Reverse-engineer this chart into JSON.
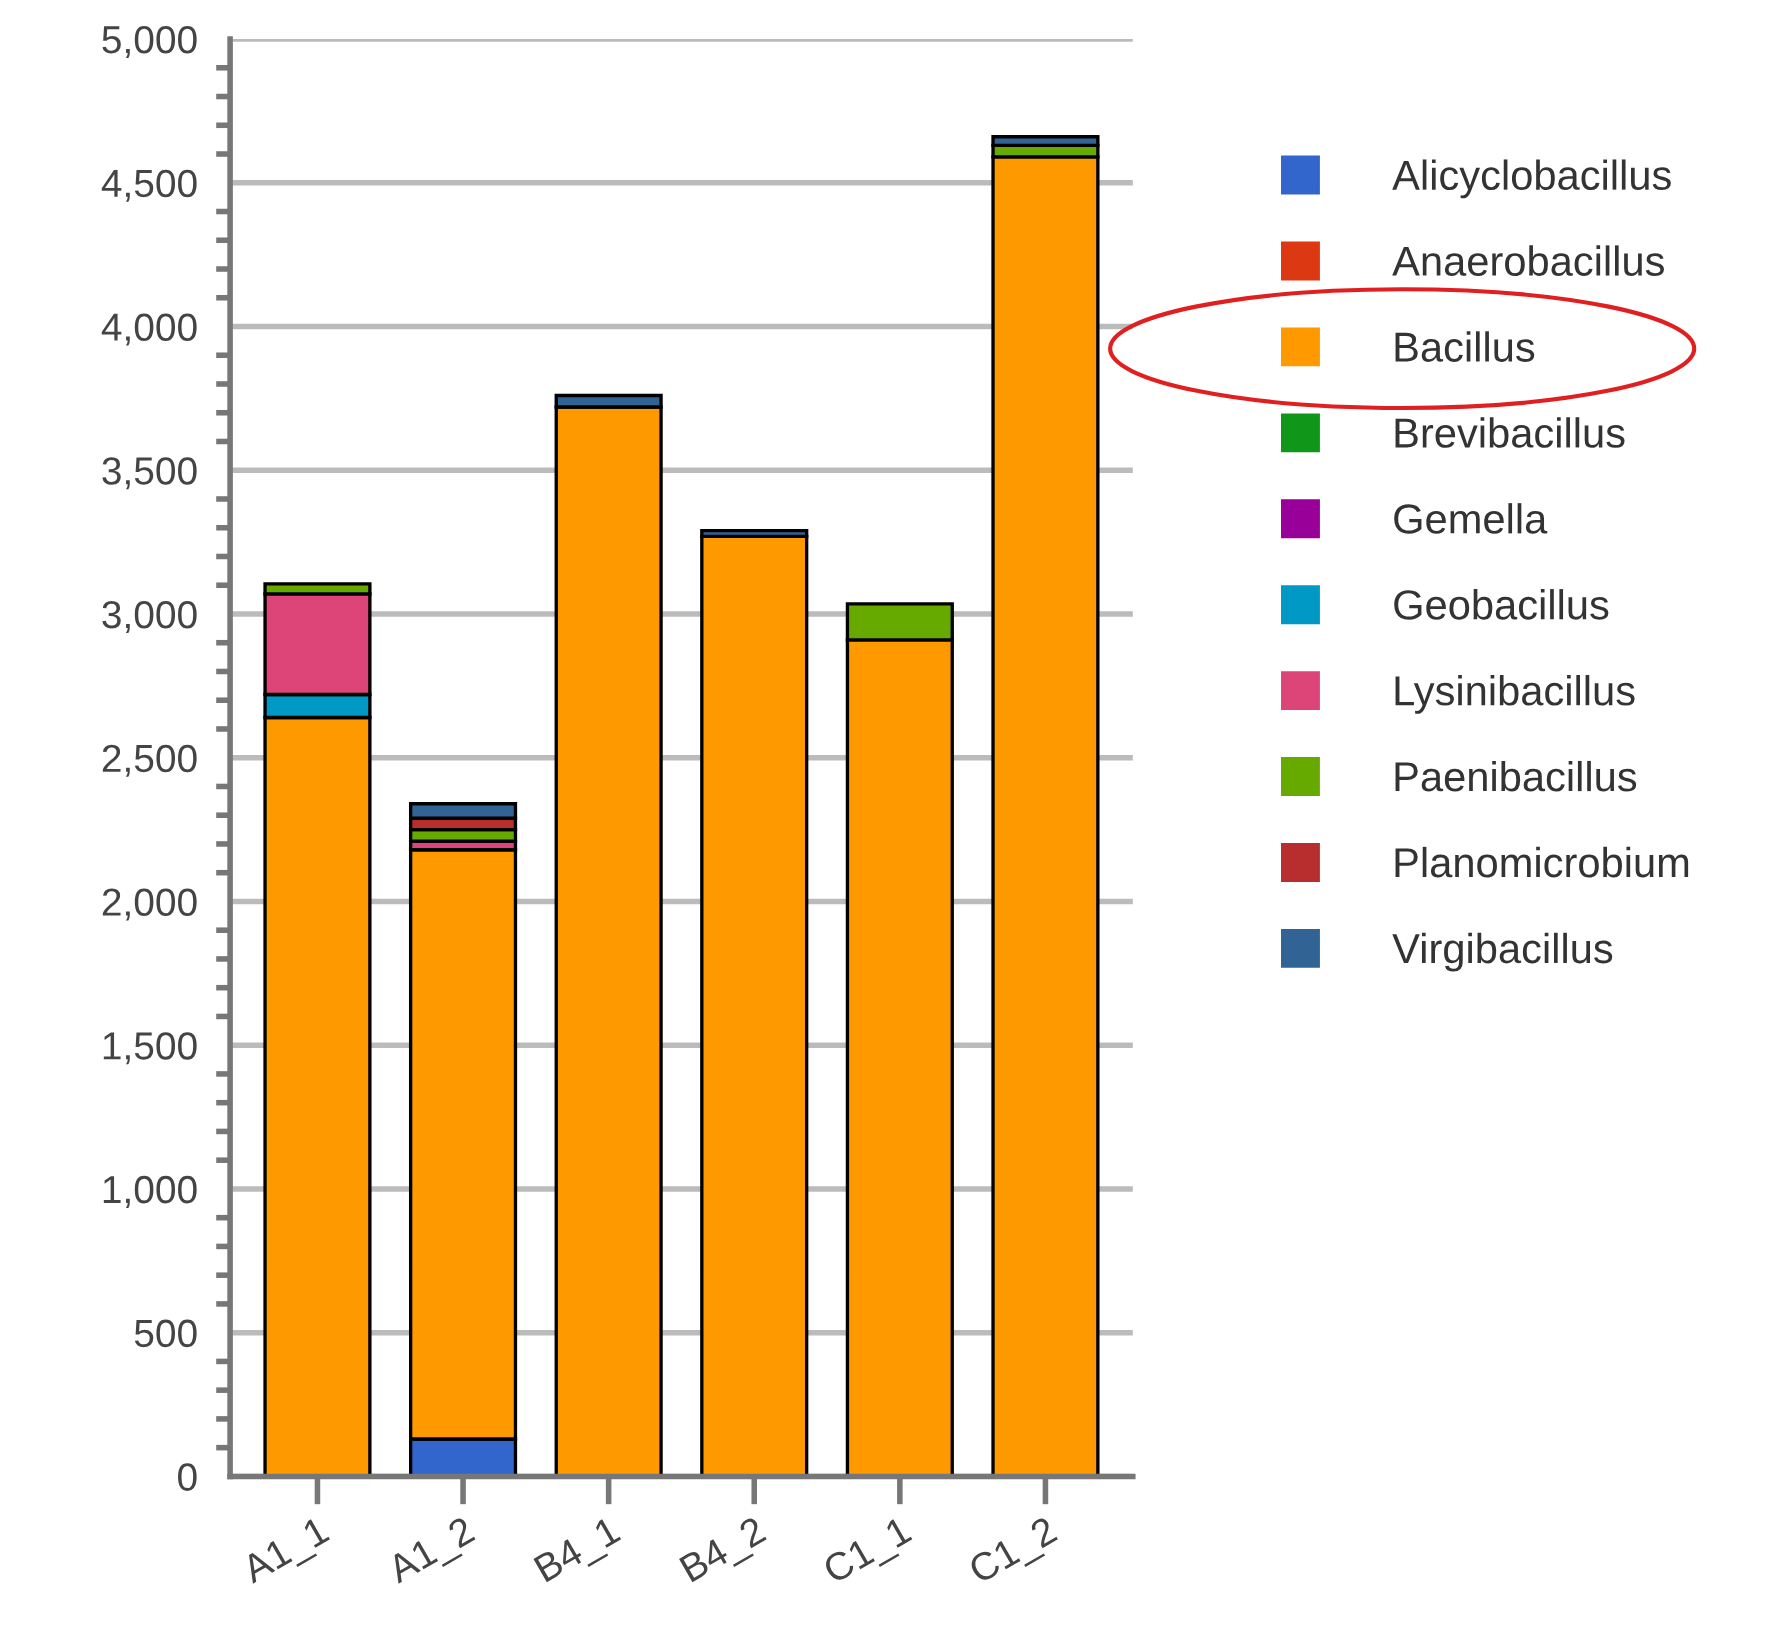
{
  "chart_data": {
    "type": "bar",
    "stacked": true,
    "categories": [
      "A1_1",
      "A1_2",
      "B4_1",
      "B4_2",
      "C1_1",
      "C1_2"
    ],
    "series": [
      {
        "name": "Alicyclobacillus",
        "color": "#3366cc",
        "values": [
          null,
          130,
          null,
          null,
          null,
          null
        ]
      },
      {
        "name": "Anaerobacillus",
        "color": "#dc3912",
        "values": [
          null,
          null,
          null,
          null,
          null,
          null
        ]
      },
      {
        "name": "Bacillus",
        "color": "#ff9900",
        "values": [
          2640,
          2050,
          3720,
          3270,
          2910,
          4590
        ]
      },
      {
        "name": "Brevibacillus",
        "color": "#109618",
        "values": [
          null,
          null,
          null,
          null,
          null,
          null
        ]
      },
      {
        "name": "Gemella",
        "color": "#990099",
        "values": [
          null,
          null,
          null,
          null,
          null,
          null
        ]
      },
      {
        "name": "Geobacillus",
        "color": "#0099c6",
        "values": [
          80,
          null,
          null,
          null,
          null,
          null
        ]
      },
      {
        "name": "Lysinibacillus",
        "color": "#dd4477",
        "values": [
          350,
          30,
          null,
          null,
          null,
          null
        ]
      },
      {
        "name": "Paenibacillus",
        "color": "#66aa00",
        "values": [
          35,
          40,
          null,
          null,
          125,
          40
        ]
      },
      {
        "name": "Planomicrobium",
        "color": "#b82e2e",
        "values": [
          null,
          40,
          null,
          null,
          null,
          null
        ]
      },
      {
        "name": "Virgibacillus",
        "color": "#316395",
        "values": [
          null,
          50,
          40,
          20,
          null,
          30
        ]
      }
    ],
    "ylim": [
      0,
      5000
    ],
    "yticks": [
      {
        "value": 0,
        "label": "0"
      },
      {
        "value": 500,
        "label": "500"
      },
      {
        "value": 1000,
        "label": "1,000"
      },
      {
        "value": 1500,
        "label": "1,500"
      },
      {
        "value": 2000,
        "label": "2,000"
      },
      {
        "value": 2500,
        "label": "2,500"
      },
      {
        "value": 3000,
        "label": "3,000"
      },
      {
        "value": 3500,
        "label": "3,500"
      },
      {
        "value": 4000,
        "label": "4,000"
      },
      {
        "value": 4500,
        "label": "4,500"
      },
      {
        "value": 5000,
        "label": "5,000"
      }
    ],
    "grid": "y",
    "legend": "right",
    "marker": "square"
  }
}
